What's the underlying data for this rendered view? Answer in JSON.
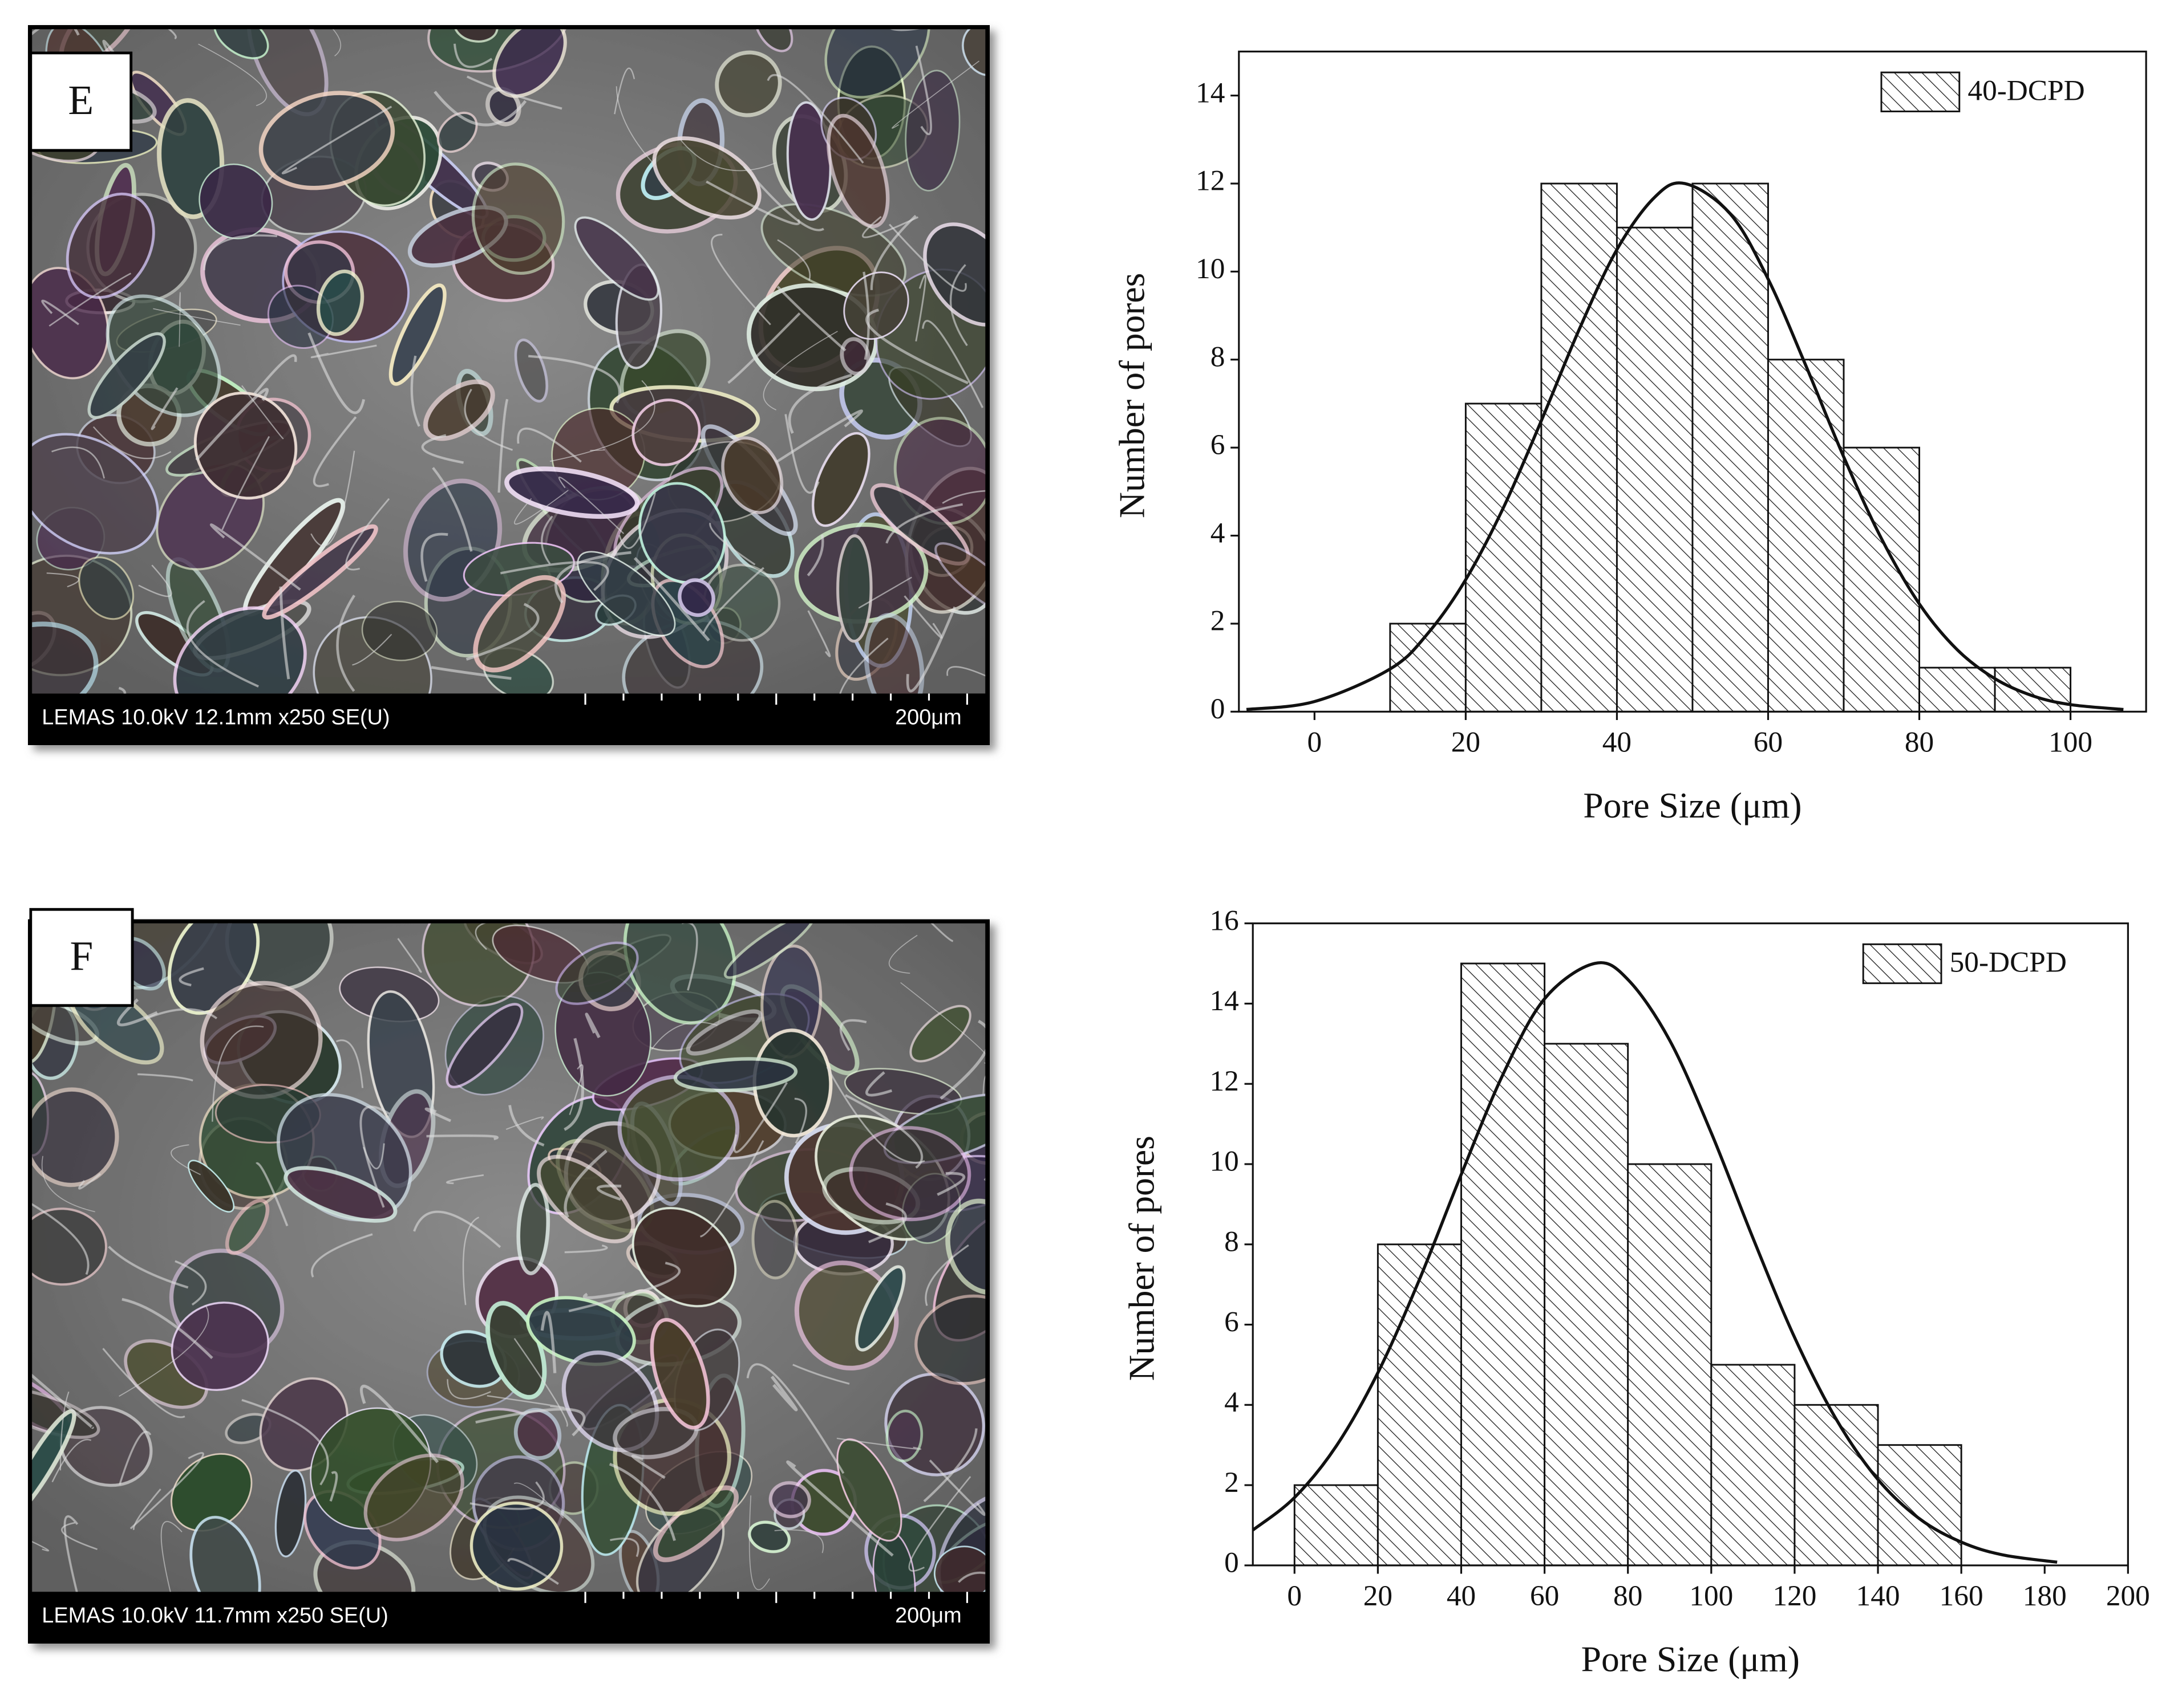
{
  "panels": [
    {
      "label": "E",
      "info": "LEMAS 10.0kV 12.1mm x250 SE(U)",
      "scale": "200μm"
    },
    {
      "label": "F",
      "info": "LEMAS 10.0kV 11.7mm x250 SE(U)",
      "scale": "200μm"
    }
  ],
  "chart_data": [
    {
      "type": "histogram",
      "xlabel": "Pore Size (μm)",
      "ylabel": "Number of pores",
      "bins": [
        10,
        20,
        30,
        40,
        50,
        60,
        70,
        80,
        90,
        100
      ],
      "series": [
        {
          "name": "40-DCPD",
          "color": "#111111",
          "values": [
            2,
            7,
            12,
            11,
            12,
            8,
            6,
            1,
            1
          ]
        }
      ],
      "fit": {
        "x": [
          -9,
          0,
          10,
          15,
          20,
          25,
          30,
          35,
          40,
          45,
          49,
          55,
          60,
          65,
          70,
          75,
          80,
          85,
          90,
          95,
          100,
          107
        ],
        "values": [
          0.05,
          0.23,
          0.97,
          1.78,
          3.0,
          4.64,
          6.61,
          8.68,
          10.5,
          11.69,
          12,
          11.31,
          9.83,
          7.86,
          5.79,
          3.93,
          2.45,
          1.41,
          0.75,
          0.36,
          0.16,
          0.05
        ]
      },
      "xlim": [
        -10,
        110
      ],
      "ylim": [
        0,
        15
      ],
      "xticks": [
        0,
        20,
        40,
        60,
        80,
        100
      ],
      "yticks": [
        0,
        2,
        4,
        6,
        8,
        10,
        12,
        14
      ],
      "legend_position": "upper right"
    },
    {
      "type": "histogram",
      "xlabel": "Pore Size (μm)",
      "ylabel": "Number of pores",
      "bins": [
        0,
        20,
        40,
        60,
        80,
        100,
        120,
        140,
        160
      ],
      "series": [
        {
          "name": "50-DCPD",
          "color": "#111111",
          "values": [
            2,
            8,
            15,
            13,
            10,
            5,
            4,
            3
          ]
        }
      ],
      "fit": {
        "x": [
          -10,
          0,
          10,
          20,
          30,
          40,
          50,
          60,
          72,
          80,
          90,
          100,
          110,
          120,
          130,
          140,
          150,
          160,
          170,
          183
        ],
        "values": [
          0.88,
          1.69,
          2.97,
          4.8,
          7.13,
          9.74,
          12.23,
          14.12,
          15,
          14.6,
          13.09,
          10.78,
          8.16,
          5.68,
          3.64,
          2.14,
          1.16,
          0.58,
          0.26,
          0.08
        ]
      },
      "xlim": [
        -10,
        200
      ],
      "ylim": [
        0,
        16
      ],
      "xticks": [
        0,
        20,
        40,
        60,
        80,
        100,
        120,
        140,
        160,
        180,
        200
      ],
      "yticks": [
        0,
        2,
        4,
        6,
        8,
        10,
        12,
        14,
        16
      ],
      "legend_position": "upper right"
    }
  ]
}
